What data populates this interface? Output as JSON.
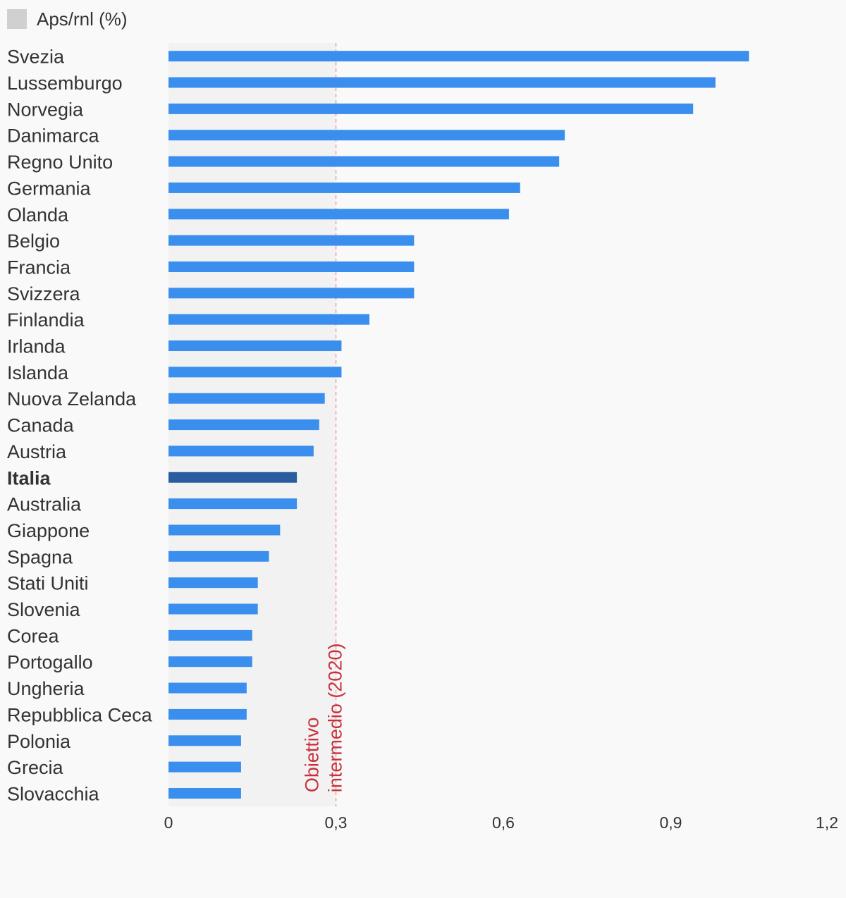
{
  "legend": {
    "label": "Aps/rnl (%)",
    "swatch_color": "#d0d0d0"
  },
  "chart_data": {
    "type": "bar",
    "orientation": "horizontal",
    "categories": [
      "Svezia",
      "Lussemburgo",
      "Norvegia",
      "Danimarca",
      "Regno Unito",
      "Germania",
      "Olanda",
      "Belgio",
      "Francia",
      "Svizzera",
      "Finlandia",
      "Irlanda",
      "Islanda",
      "Nuova Zelanda",
      "Canada",
      "Austria",
      "Italia",
      "Australia",
      "Giappone",
      "Spagna",
      "Stati Uniti",
      "Slovenia",
      "Corea",
      "Portogallo",
      "Ungheria",
      "Repubblica Ceca",
      "Polonia",
      "Grecia",
      "Slovacchia"
    ],
    "values": [
      1.04,
      0.98,
      0.94,
      0.71,
      0.7,
      0.63,
      0.61,
      0.44,
      0.44,
      0.44,
      0.36,
      0.31,
      0.31,
      0.28,
      0.27,
      0.26,
      0.23,
      0.23,
      0.2,
      0.18,
      0.16,
      0.16,
      0.15,
      0.15,
      0.14,
      0.14,
      0.13,
      0.13,
      0.13
    ],
    "highlight": "Italia",
    "bar_color": "#3a8eed",
    "highlight_color": "#2a5d9f",
    "xlim": [
      0,
      1.2
    ],
    "x_ticks": [
      0,
      0.3,
      0.6,
      0.9,
      1.2
    ],
    "x_tick_labels": [
      "0",
      "0,3",
      "0,6",
      "0,9",
      "1,2"
    ],
    "reference_line": {
      "value": 0.3,
      "label_lines": [
        "Obiettivo",
        "intermedio (2020)"
      ],
      "color": "#c8323c",
      "shade_color": "#f2f2f2"
    },
    "legend_position": "top-left"
  }
}
